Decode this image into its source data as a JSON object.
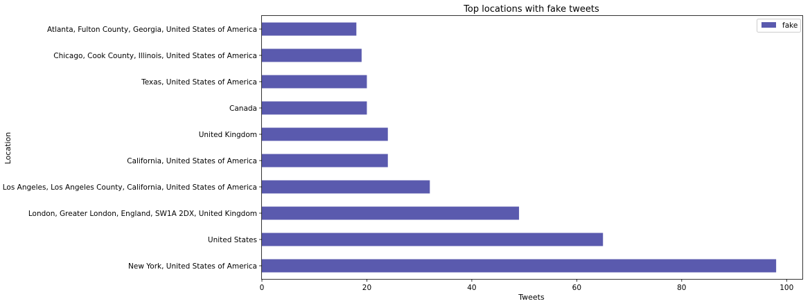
{
  "chart_data": {
    "type": "bar",
    "orientation": "horizontal",
    "title": "Top locations with fake tweets",
    "xlabel": "Tweets",
    "ylabel": "Location",
    "xlim": [
      0,
      103
    ],
    "xticks": [
      0,
      20,
      40,
      60,
      80,
      100
    ],
    "grid": false,
    "legend_position": "top-right",
    "categories": [
      "New York, United States of America",
      "United States",
      "London, Greater London, England, SW1A 2DX, United Kingdom",
      "Los Angeles, Los Angeles County, California, United States of America",
      "California, United States of America",
      "United Kingdom",
      "Canada",
      "Texas, United States of America",
      "Chicago, Cook County, Illinois, United States of America",
      "Atlanta, Fulton County, Georgia, United States of America"
    ],
    "series": [
      {
        "name": "fake",
        "color": "#5a5aae",
        "values": [
          98,
          65,
          49,
          32,
          24,
          24,
          20,
          20,
          19,
          18
        ]
      }
    ]
  }
}
